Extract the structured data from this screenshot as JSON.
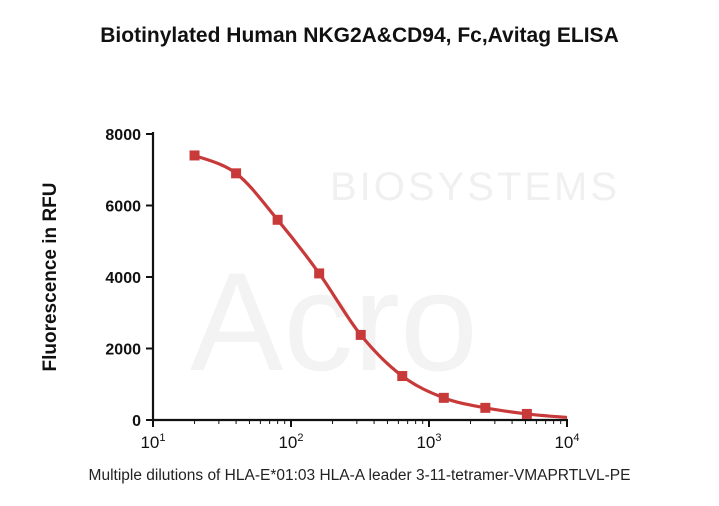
{
  "chart_data": {
    "type": "line",
    "title": "Biotinylated Human NKG2A&CD94, Fc,Avitag ELISA",
    "xlabel": "Multiple dilutions of HLA-E*01:03 HLA-A leader 3-11-tetramer-VMAPRTLVL-PE",
    "ylabel": "Fluorescence in RFU",
    "xscale": "log",
    "xlim": [
      10,
      10000
    ],
    "ylim": [
      0,
      8000
    ],
    "xticks": [
      {
        "value": 10,
        "base": "10",
        "exp": "1"
      },
      {
        "value": 100,
        "base": "10",
        "exp": "2"
      },
      {
        "value": 1000,
        "base": "10",
        "exp": "3"
      },
      {
        "value": 10000,
        "base": "10",
        "exp": "4"
      }
    ],
    "yticks": [
      0,
      2000,
      4000,
      6000,
      8000
    ],
    "grid": false,
    "series": [
      {
        "x": [
          20,
          40,
          80,
          160,
          320,
          640,
          1280,
          2560,
          5120
        ],
        "y": [
          7400,
          6900,
          5600,
          4100,
          2380,
          1230,
          620,
          340,
          170
        ],
        "color": "#c83a3a",
        "marker": "square"
      }
    ],
    "watermark": "Acro BIOSYSTEMS"
  }
}
